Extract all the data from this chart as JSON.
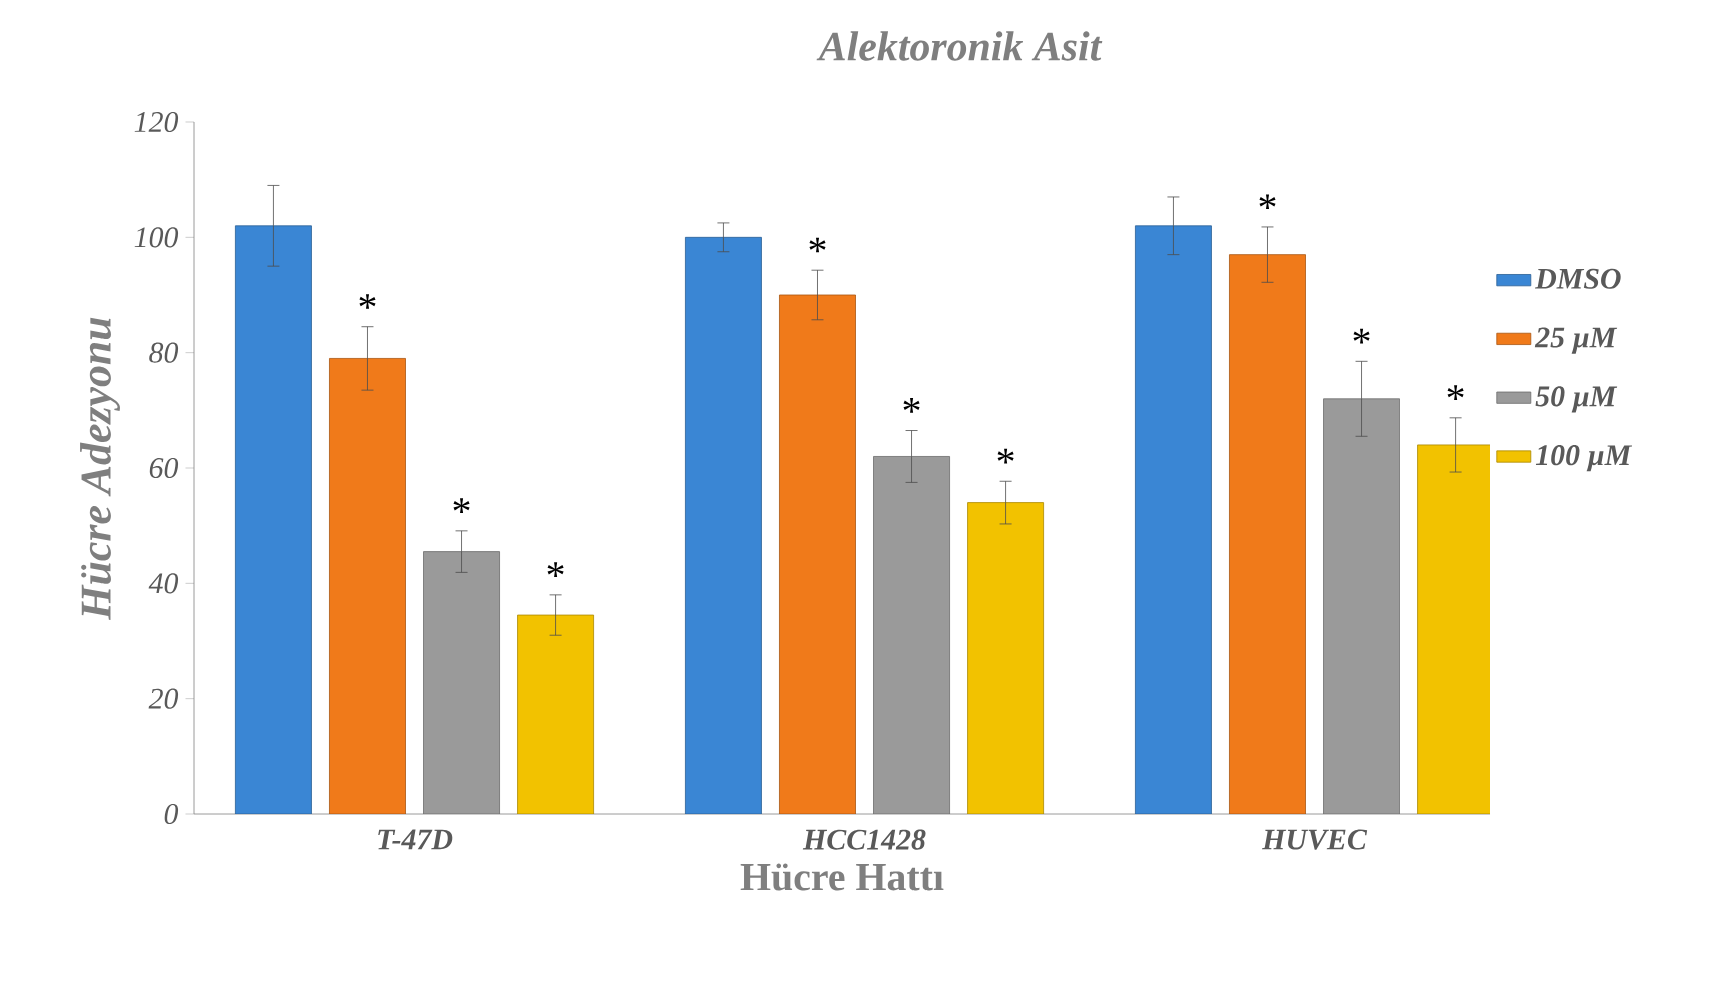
{
  "chart_data": {
    "type": "bar",
    "title": "Alektoronik Asit",
    "xlabel": "Hücre Hattı",
    "ylabel": "Hücre Adezyonu",
    "categories": [
      "T-47D",
      "HCC1428",
      "HUVEC"
    ],
    "series": [
      {
        "name": "DMSO",
        "color": "#3a86d4",
        "values": [
          102,
          100,
          102
        ],
        "errors": [
          7,
          2.5,
          5
        ]
      },
      {
        "name": "25 µM",
        "color": "#f07a1a",
        "values": [
          79,
          90,
          97
        ],
        "errors": [
          5.5,
          4.3,
          4.8
        ],
        "value_labels": [
          "*",
          "*",
          "*"
        ]
      },
      {
        "name": "50 µM",
        "color": "#9a9a9a",
        "values": [
          45.5,
          62,
          72
        ],
        "errors": [
          3.6,
          4.5,
          6.5
        ],
        "value_labels": [
          "*",
          "*",
          "*"
        ]
      },
      {
        "name": "100 µM",
        "color": "#f2c200",
        "values": [
          34.5,
          54,
          64
        ],
        "errors": [
          3.5,
          3.7,
          4.7
        ],
        "value_labels": [
          "*",
          "*",
          "*"
        ]
      }
    ],
    "ylim": [
      0,
      120
    ],
    "yticks": [
      0,
      20,
      40,
      60,
      80,
      100,
      120
    ],
    "grid": false,
    "legend": "right"
  }
}
